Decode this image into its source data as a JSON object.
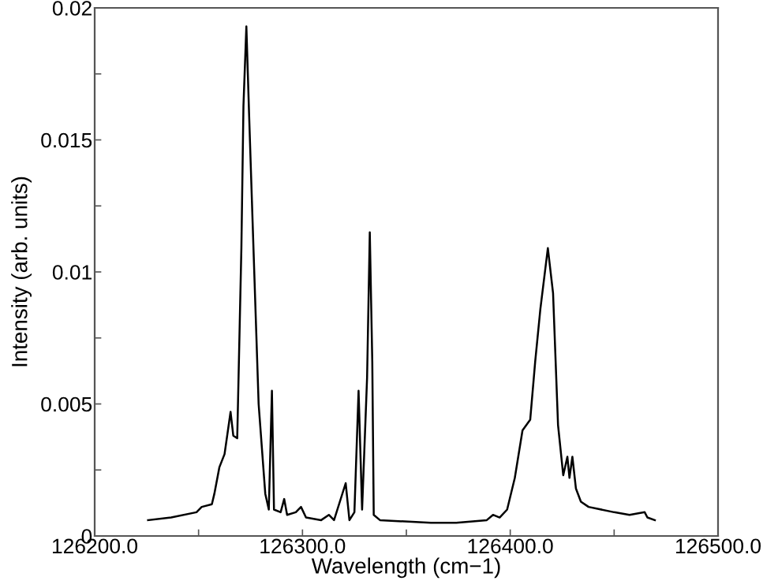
{
  "chart_data": {
    "type": "line",
    "xlabel": "Wavelength (cm−1)",
    "ylabel": "Intensity (arb. units)",
    "xlim": [
      126200,
      126500
    ],
    "xticks": [
      {
        "value": 126200,
        "label": "126200.0"
      },
      {
        "value": 126250,
        "label": null
      },
      {
        "value": 126300,
        "label": "126300.0"
      },
      {
        "value": 126350,
        "label": null
      },
      {
        "value": 126400,
        "label": "126400.0"
      },
      {
        "value": 126450,
        "label": null
      },
      {
        "value": 126500,
        "label": "126500.0"
      }
    ],
    "ylim": [
      0,
      0.02
    ],
    "yticks": [
      0,
      {
        "value": 0.0025,
        "label": null
      },
      0.005,
      {
        "value": 0.0075,
        "label": null
      },
      0.01,
      {
        "value": 0.0125,
        "label": null
      },
      0.015,
      {
        "value": 0.0175,
        "label": null
      },
      0.02
    ],
    "grid": false,
    "marker": "none",
    "line_style": "solid",
    "series": [
      {
        "color": "#000000",
        "x": [
          126225.7,
          126236.8,
          126249,
          126251.5,
          126256.4,
          126257.6,
          126260.0,
          126262.5,
          126265.4,
          126266.7,
          126268.6,
          126270.6,
          126271.6,
          126273.0,
          126274.3,
          126276.0,
          126276.5,
          126278.9,
          126282.1,
          126283.8,
          126285.3,
          126286.3,
          126289.5,
          126291.2,
          126292.6,
          126296.8,
          126299.3,
          126301.7,
          126309.0,
          126312.7,
          126315.2,
          126320.8,
          126322.6,
          126325.0,
          126327.0,
          126328.7,
          126331.1,
          126332.4,
          126333.6,
          126334.3,
          126337.3,
          126361.8,
          126374.0,
          126388.7,
          126391.7,
          126394.9,
          126398.5,
          126402.2,
          126405.9,
          126409.6,
          126412.0,
          126414.5,
          126418.1,
          126420.6,
          126423.0,
          126425.5,
          126427.5,
          126428.5,
          126429.9,
          126431.6,
          126434.0,
          126437.7,
          126450.0,
          126457.4,
          126464.7,
          126466.0,
          126469.6
        ],
        "values": [
          0.0006,
          0.0007,
          0.0009,
          0.0011,
          0.0012,
          0.0016,
          0.0026,
          0.0031,
          0.0047,
          0.0038,
          0.0037,
          0.0109,
          0.0163,
          0.0193,
          0.016,
          0.0119,
          0.0107,
          0.005,
          0.0016,
          0.001,
          0.0055,
          0.001,
          0.0009,
          0.0014,
          0.0008,
          0.0009,
          0.0011,
          0.0007,
          0.0006,
          0.0008,
          0.0006,
          0.002,
          0.0006,
          0.0009,
          0.0055,
          0.001,
          0.006,
          0.0115,
          0.0066,
          0.0008,
          0.0006,
          0.0005,
          0.0005,
          0.0006,
          0.0008,
          0.0007,
          0.001,
          0.0022,
          0.004,
          0.0044,
          0.0066,
          0.0086,
          0.0109,
          0.0092,
          0.0042,
          0.0023,
          0.003,
          0.0022,
          0.003,
          0.0018,
          0.0013,
          0.0011,
          0.0009,
          0.0008,
          0.0009,
          0.0007,
          0.0006
        ]
      }
    ]
  }
}
